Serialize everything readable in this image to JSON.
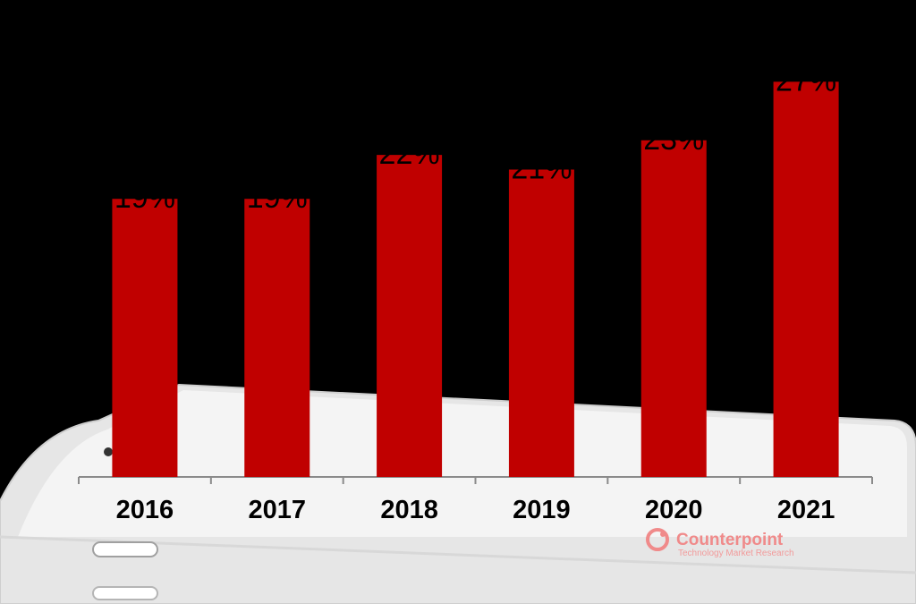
{
  "chart_data": {
    "type": "bar",
    "categories": [
      "2016",
      "2017",
      "2018",
      "2019",
      "2020",
      "2021"
    ],
    "values": [
      19,
      19,
      22,
      21,
      23,
      27
    ],
    "value_labels": [
      "19%",
      "19%",
      "22%",
      "21%",
      "23%",
      "27%"
    ],
    "ylim": [
      0,
      28
    ],
    "bar_color": "#c00000",
    "title": "",
    "xlabel": "",
    "ylabel": ""
  },
  "brand": {
    "name": "Counterpoint",
    "tagline": "Technology Market Research",
    "color": "#f08a8a"
  },
  "colors": {
    "background": "#000000",
    "phone_body": "#e9e9e9",
    "phone_screen": "#f2f2f2"
  }
}
